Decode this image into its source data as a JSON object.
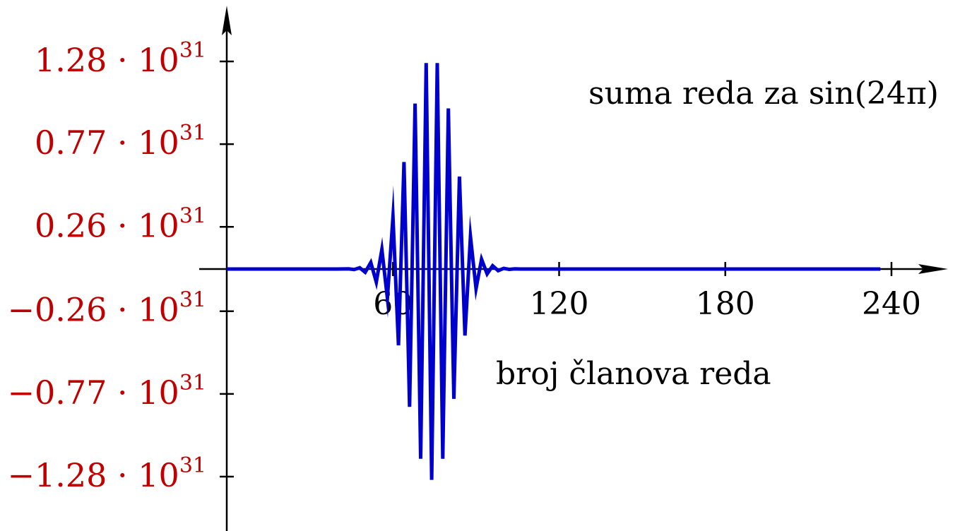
{
  "chart_data": {
    "type": "line",
    "title": "",
    "xlabel": "",
    "ylabel": "",
    "annotations": [
      "suma reda za sin(24π)",
      "broj članova reda"
    ],
    "x_ticks": [
      {
        "value": 60,
        "label": "60"
      },
      {
        "value": 120,
        "label": "120"
      },
      {
        "value": 180,
        "label": "180"
      },
      {
        "value": 240,
        "label": "240"
      }
    ],
    "y_ticks": [
      {
        "value": 1.28e+31,
        "label": "1.28 · 10",
        "exp": "31"
      },
      {
        "value": 7.7e+30,
        "label": "0.77 · 10",
        "exp": "31"
      },
      {
        "value": 2.6e+30,
        "label": "0.26 · 10",
        "exp": "31"
      },
      {
        "value": -2.6e+30,
        "label": "−0.26 · 10",
        "exp": "31"
      },
      {
        "value": -7.7e+30,
        "label": "−0.77 · 10",
        "exp": "31"
      },
      {
        "value": -1.28e+31,
        "label": "−1.28 · 10",
        "exp": "31"
      }
    ],
    "xlim": [
      0,
      250
    ],
    "ylim": [
      -1.55e+31,
      1.6e+31
    ],
    "grid": false,
    "colors": {
      "line": "#0000cc",
      "ytick": "#c00000",
      "axis": "#000000"
    },
    "series": [
      {
        "name": "",
        "x": [
          0,
          10,
          20,
          30,
          40,
          44,
          46,
          48,
          50,
          52,
          54,
          56,
          58,
          60,
          62,
          64,
          66,
          68,
          70,
          72,
          74,
          76,
          78,
          80,
          82,
          84,
          86,
          88,
          90,
          92,
          94,
          96,
          98,
          100,
          102,
          104,
          106,
          108,
          110,
          115,
          120,
          130,
          140,
          160,
          180,
          200,
          220,
          236
        ],
        "y": [
          0,
          0,
          0,
          0,
          0,
          1e+28,
          -3e+28,
          8e+28,
          -2e+29,
          4e+29,
          -8e+29,
          1.2e+30,
          -1.8e+30,
          3.2e+30,
          -4.7e+30,
          6.6e+30,
          -8.5e+30,
          1.02e+31,
          -1.17e+31,
          1.27e+31,
          -1.3e+31,
          1.27e+31,
          -1.17e+31,
          9.9e+30,
          -8e+30,
          5.7e+30,
          -4.1e+30,
          2e+30,
          -1.2e+30,
          6e+29,
          -3e+29,
          2e+29,
          -1e+29,
          4e+28,
          -2e+28,
          1e+28,
          0,
          0,
          0,
          0,
          0,
          0,
          0,
          0,
          0,
          0,
          0,
          0
        ]
      }
    ]
  }
}
